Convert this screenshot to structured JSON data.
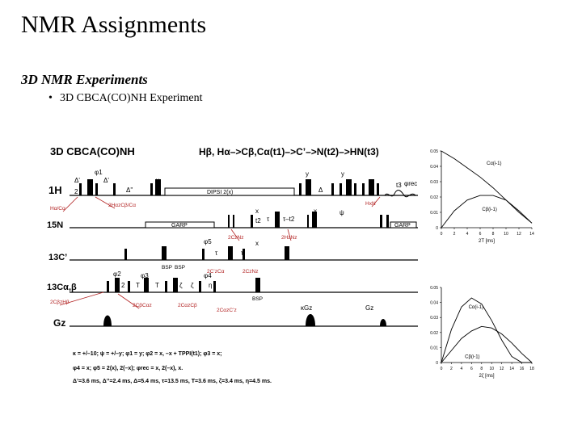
{
  "slide": {
    "title": "NMR Assignments",
    "subtitle": "3D NMR Experiments",
    "bullet": "3D CBCA(CO)NH Experiment",
    "bullet_marker": "•"
  },
  "sequence": {
    "name": "3D CBCA(CO)NH",
    "transfer": "Hβ, Hα–>Cβ,Cα(t1)–>C’–>N(t2)–>HN(t3)",
    "channels": {
      "h": "1H",
      "n": "15N",
      "co": "13C’",
      "ca": "13Cα,β",
      "gz": "Gz"
    },
    "decoupling": {
      "dipsi": "DIPSI 2(x)",
      "garp1": "GARP",
      "garp2": "GARP",
      "garp3": "GARP"
    },
    "labels": {
      "phi1": "φ1",
      "phi2": "φ2",
      "phi3": "φ3",
      "phi4": "φ4",
      "phi5": "φ5",
      "phirec": "φrec",
      "y1": "y",
      "y2": "y",
      "y3": "y",
      "x1": "x",
      "x2": "x",
      "x3": "x",
      "delta_p": "Δ'",
      "delta_pp": "Δ''",
      "delta": "Δ",
      "psi": "ψ",
      "t3": "t3",
      "tau1": "τ",
      "tau2": "τ",
      "tau3": "τ",
      "taup": "τ–t2",
      "t2half": "t2",
      "T1": "T",
      "T2": "T",
      "zeta1": "ζ",
      "zeta2": "ζ",
      "eta": "η",
      "bsp1": "BSP",
      "bsp2": "BSP",
      "bsp3": "BSP",
      "gz1": "κGz",
      "gz2": "Gz",
      "htrans": "Hα/Cα",
      "htrans2": "2HαzCβ/Cα",
      "hn": "HxN",
      "cn1": "2CzNz",
      "cn2": "2CzNz",
      "cn3": "2HzNz",
      "c1": "2C’zCα",
      "c2": "2CαzC’z",
      "ca1": "2CβzHβ",
      "ca2": "2CβCαz",
      "ca3": "2CαzCβ",
      "ca4": "2CαzC’z",
      "half": "2"
    },
    "phases": [
      "κ = +/–10; ψ = +/–y; φ1 = y; φ2 = x, –x + TPPI(t1); φ3 = x;",
      "φ4 = x; φ5 = 2(x), 2(–x); φrec = x, 2(–x), x.",
      "Δ’=3.6 ms, Δ’’=2.4 ms, Δ=5.4 ms, τ=13.5 ms, T=3.6 ms, ζ=3.4 ms, η=4.5 ms."
    ]
  },
  "chart_data": [
    {
      "type": "line",
      "x": [
        0,
        2,
        4,
        6,
        8,
        10,
        12,
        14
      ],
      "xticks": [
        "0",
        "2",
        "4",
        "6",
        "8",
        "10",
        "12",
        "14"
      ],
      "yticks": [
        "0",
        "0.01",
        "0.02",
        "0.03",
        "0.04",
        "0.05"
      ],
      "xlabel": "2T [ms]",
      "ylim": [
        0,
        0.05
      ],
      "series": [
        {
          "name": "Cα(i-1)",
          "values": [
            0.05,
            0.045,
            0.039,
            0.033,
            0.026,
            0.018,
            0.01,
            0.003
          ]
        },
        {
          "name": "Cβ(i-1)",
          "values": [
            0,
            0.011,
            0.018,
            0.021,
            0.021,
            0.018,
            0.011,
            0.003
          ]
        }
      ]
    },
    {
      "type": "line",
      "x": [
        0,
        2,
        4,
        6,
        8,
        10,
        12,
        14,
        16,
        18
      ],
      "xticks": [
        "0",
        "2",
        "4",
        "6",
        "8",
        "10",
        "12",
        "14",
        "16",
        "18"
      ],
      "yticks": [
        "0",
        "0.01",
        "0.02",
        "0.03",
        "0.04",
        "0.05"
      ],
      "xlabel": "2ζ [ms]",
      "ylim": [
        0,
        0.05
      ],
      "series": [
        {
          "name": "Cα(i-1)",
          "values": [
            0,
            0.022,
            0.037,
            0.043,
            0.039,
            0.028,
            0.015,
            0.004,
            0,
            0
          ]
        },
        {
          "name": "Cβ(i-1)",
          "values": [
            0,
            0.008,
            0.016,
            0.021,
            0.024,
            0.023,
            0.019,
            0.013,
            0.006,
            0
          ]
        }
      ]
    }
  ]
}
